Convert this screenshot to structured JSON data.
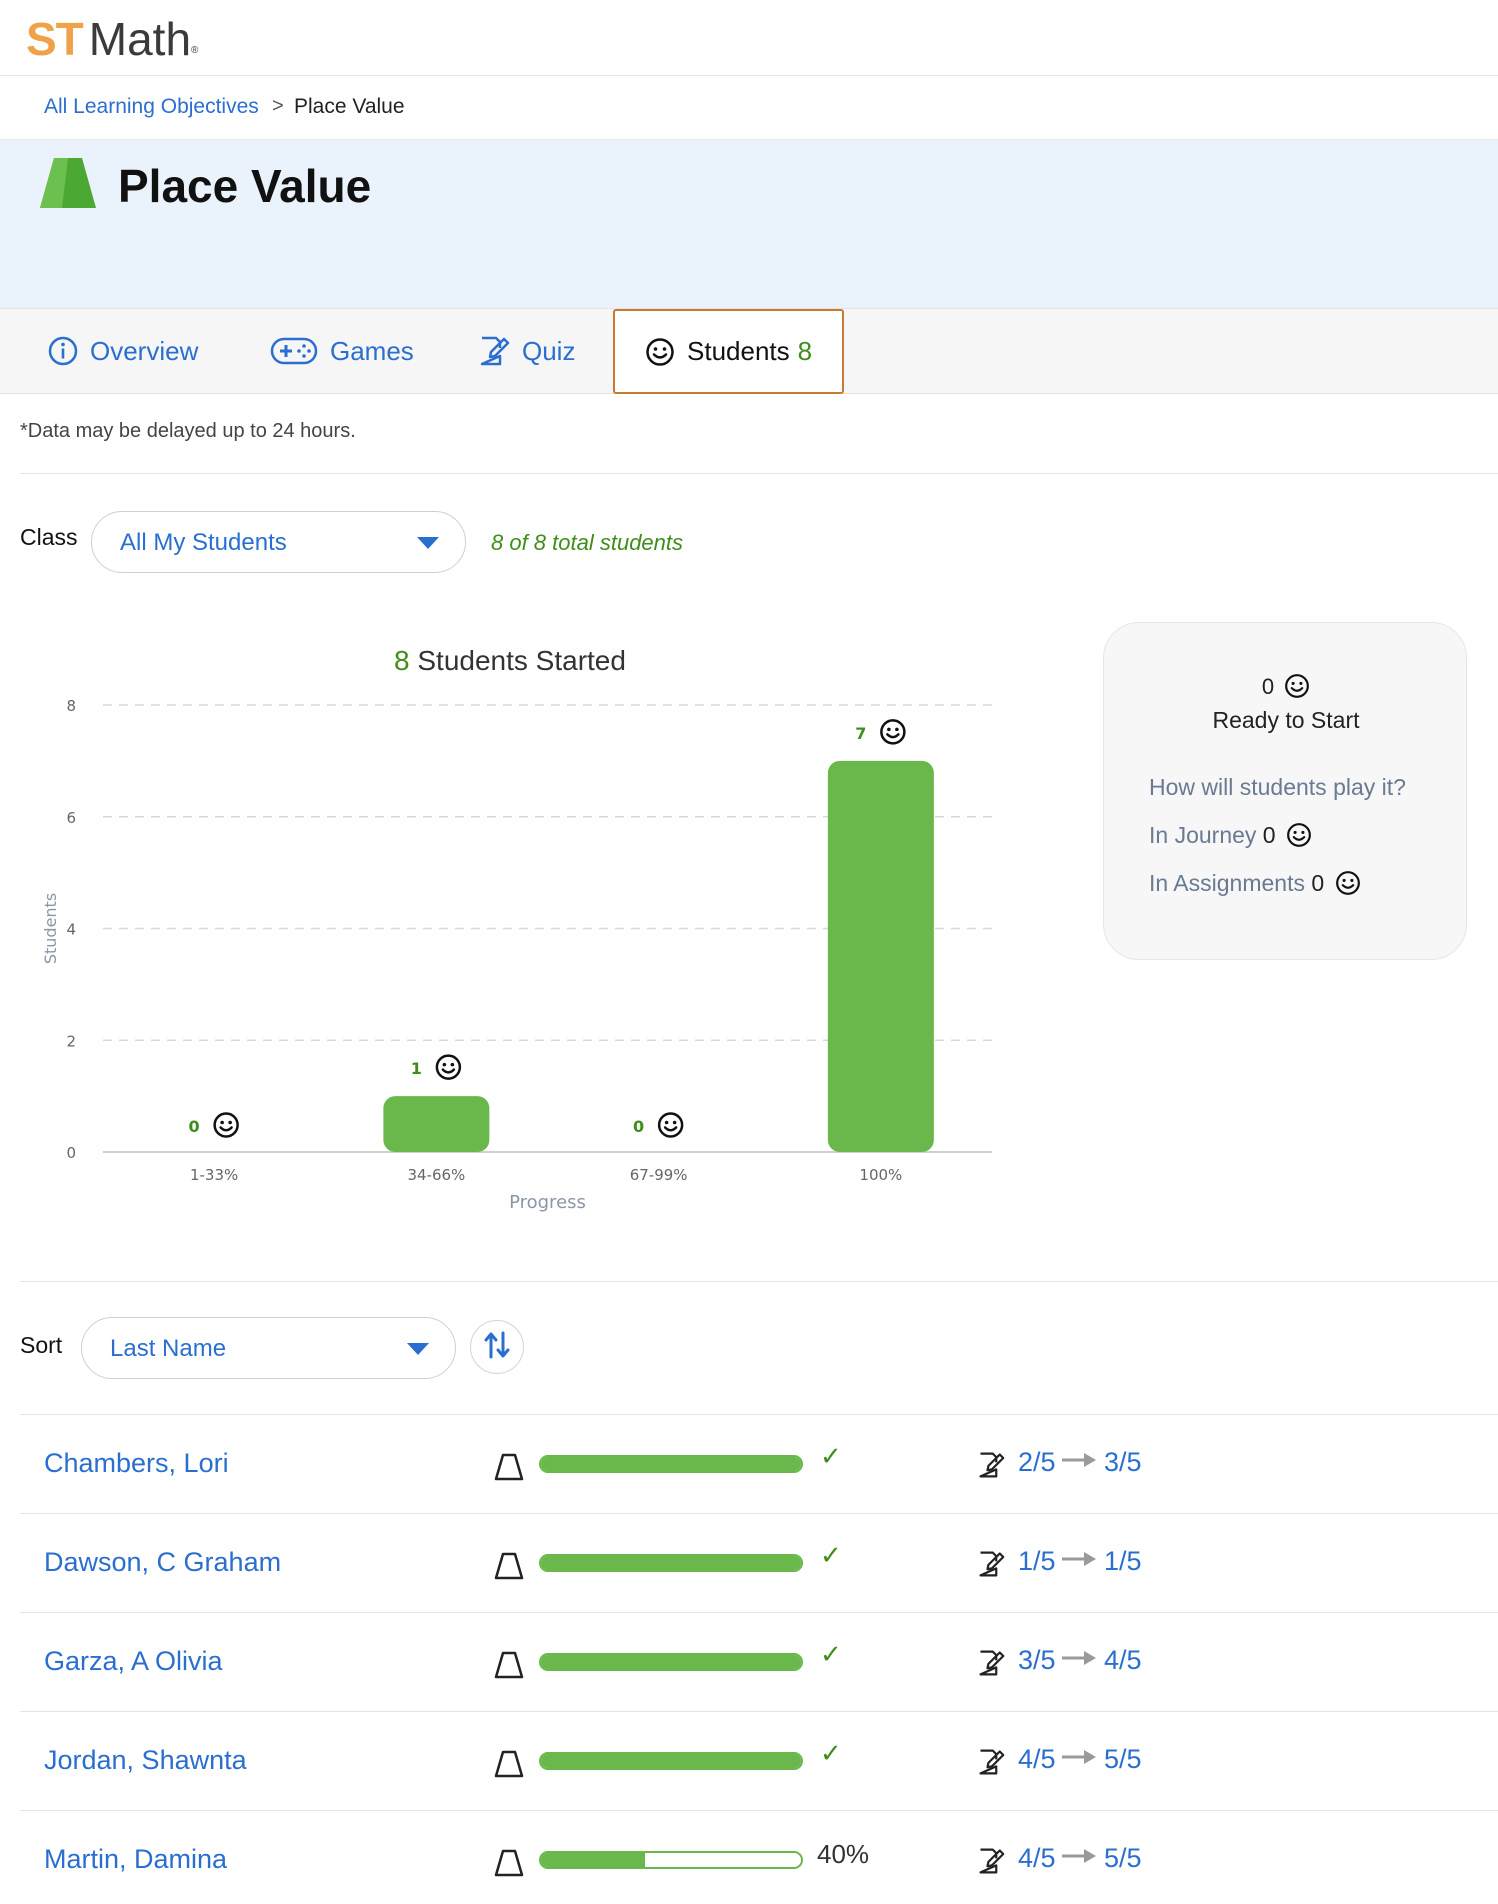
{
  "app": {
    "logo_st": "ST",
    "logo_math": "Math",
    "logo_reg": "®"
  },
  "breadcrumb": {
    "parent": "All Learning Objectives",
    "separator": ">",
    "current": "Place Value"
  },
  "page": {
    "title": "Place Value",
    "icon": "green-trapezoid-icon"
  },
  "tabs": [
    {
      "label": "Overview",
      "icon": "info-icon"
    },
    {
      "label": "Games",
      "icon": "gamepad-icon"
    },
    {
      "label": "Quiz",
      "icon": "quiz-icon"
    },
    {
      "label": "Students",
      "icon": "smiley-icon",
      "count": "8",
      "active": true
    }
  ],
  "notice": "*Data may be delayed up to 24 hours.",
  "class_filter": {
    "label": "Class",
    "selected": "All My Students",
    "total_text": "8 of 8 total students"
  },
  "chart_data": {
    "type": "bar",
    "title_count": "8",
    "title_text": "Students Started",
    "categories": [
      "1-33%",
      "34-66%",
      "67-99%",
      "100%"
    ],
    "values": [
      0,
      1,
      0,
      7
    ],
    "data_labels": [
      "0",
      "1",
      "0",
      "7"
    ],
    "xlabel": "Progress",
    "ylabel": "Students",
    "ylim": [
      0,
      8
    ],
    "yticks": [
      "0",
      "2",
      "4",
      "6",
      "8"
    ],
    "grid": true,
    "bar_color": "#6ab84c",
    "label_color": "#3f8e1c"
  },
  "side_panel": {
    "ready_count": "0",
    "ready_label": "Ready to Start",
    "question": "How will students play it?",
    "journey_label": "In Journey",
    "journey_count": "0",
    "assignments_label": "In Assignments",
    "assignments_count": "0"
  },
  "sort": {
    "label": "Sort",
    "selected": "Last Name",
    "toggle_icon": "sort-direction-icon"
  },
  "students": [
    {
      "name": "Chambers, Lori",
      "progress": 1.0,
      "status": "✓",
      "pre": "2/5",
      "post": "3/5"
    },
    {
      "name": "Dawson, C Graham",
      "progress": 1.0,
      "status": "✓",
      "pre": "1/5",
      "post": "1/5"
    },
    {
      "name": "Garza, A Olivia",
      "progress": 1.0,
      "status": "✓",
      "pre": "3/5",
      "post": "4/5"
    },
    {
      "name": "Jordan, Shawnta",
      "progress": 1.0,
      "status": "✓",
      "pre": "4/5",
      "post": "5/5"
    },
    {
      "name": "Martin, Damina",
      "progress": 0.4,
      "status": "40%",
      "pre": "4/5",
      "post": "5/5"
    }
  ],
  "colors": {
    "brand_orange": "#f0a24a",
    "link_blue": "#2a6fd0",
    "success_green": "#3f8e1c",
    "bar_green": "#6ab84c",
    "active_tab_border": "#c97a31",
    "hero_bg": "#eaf3fc"
  }
}
